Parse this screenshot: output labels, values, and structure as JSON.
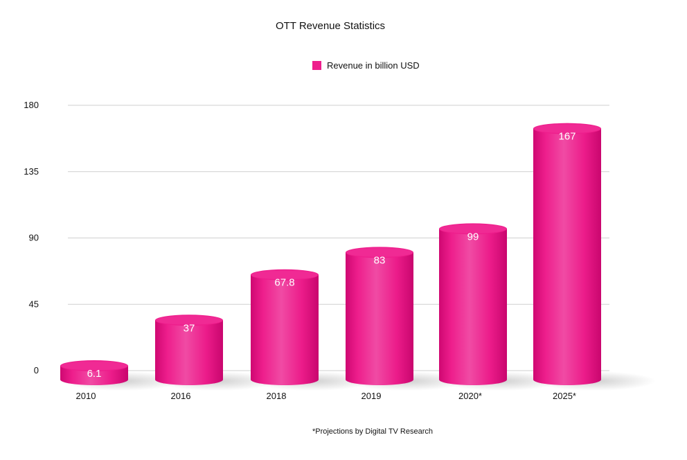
{
  "chart_data": {
    "type": "bar",
    "title": "OTT Revenue Statistics",
    "xlabel": "",
    "ylabel": "",
    "categories": [
      "2010",
      "2016",
      "2018",
      "2019",
      "2020*",
      "2025*"
    ],
    "series": [
      {
        "name": "Revenue in billion USD",
        "values": [
          6.1,
          37,
          67.8,
          83,
          99,
          167
        ]
      }
    ],
    "value_labels": [
      "6.1",
      "37",
      "67.8",
      "83",
      "99",
      "167"
    ],
    "yticks": [
      "0",
      "45",
      "90",
      "135",
      "180"
    ],
    "ylim": [
      0,
      180
    ],
    "grid": true,
    "legend": "top-center",
    "bar_color": "#ee1e8c",
    "footnote": "*Projections by Digital TV Research"
  }
}
